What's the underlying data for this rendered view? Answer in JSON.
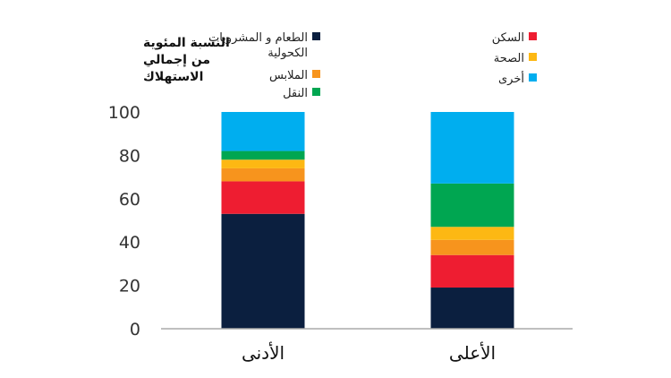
{
  "chart_data": {
    "type": "bar",
    "stacked": true,
    "ylabel_lines": [
      "النسبة المئوية",
      "من إجمالي",
      "الاستهلاك"
    ],
    "categories": [
      "الأدنى",
      "الأعلى"
    ],
    "ylim": [
      0,
      100
    ],
    "yticks": [
      "0",
      "20",
      "40",
      "60",
      "80",
      "100"
    ],
    "grid": false,
    "series": [
      {
        "name": "الطعام و المشروبات الكحولية",
        "color": "#0b1f3f",
        "values": [
          53,
          19
        ]
      },
      {
        "name": "السكن",
        "color": "#ee1d31",
        "values": [
          15,
          15
        ]
      },
      {
        "name": "الملابس",
        "color": "#f7941d",
        "values": [
          6,
          7
        ]
      },
      {
        "name": "الصحة",
        "color": "#fdb813",
        "values": [
          4,
          6
        ]
      },
      {
        "name": "النقل",
        "color": "#00a651",
        "values": [
          4,
          20
        ]
      },
      {
        "name": "أخرى",
        "color": "#00aeef",
        "values": [
          18,
          33
        ]
      }
    ],
    "legend_columns": [
      [
        "الطعام و المشروبات الكحولية",
        "الملابس",
        "النقل"
      ],
      [
        "السكن",
        "الصحة",
        "أخرى"
      ]
    ]
  }
}
